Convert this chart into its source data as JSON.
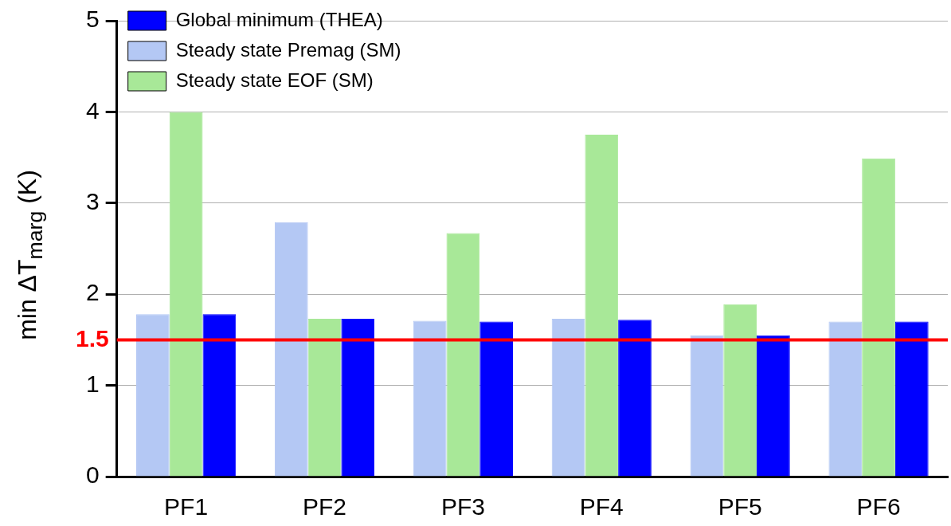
{
  "chart_data": {
    "type": "bar",
    "ylabel": "min ΔT$_{marg}$ (K)",
    "categories": [
      "PF1",
      "PF2",
      "PF3",
      "PF4",
      "PF5",
      "PF6"
    ],
    "series": [
      {
        "name": "Steady state Premag (SM)",
        "color": "#b4c8f4",
        "values": [
          1.78,
          2.79,
          1.71,
          1.73,
          1.55,
          1.7
        ]
      },
      {
        "name": "Steady state EOF (SM)",
        "color": "#a8e898",
        "values": [
          4.0,
          1.73,
          2.67,
          3.75,
          1.89,
          3.49
        ]
      },
      {
        "name": "Global minimum (THEA)",
        "color": "#0000ff",
        "values": [
          1.78,
          1.73,
          1.7,
          1.72,
          1.55,
          1.7
        ]
      }
    ],
    "ylim": [
      0,
      5
    ],
    "yticks": [
      0,
      1,
      2,
      3,
      4,
      5
    ],
    "grid": "y",
    "legend": "top",
    "ref_lines": [
      {
        "axis": "y",
        "value": 1.5,
        "label": "1.5",
        "color": "#ff0000"
      }
    ]
  }
}
